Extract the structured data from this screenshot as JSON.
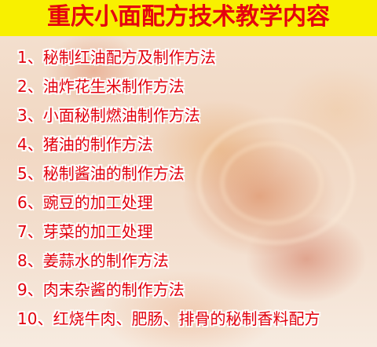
{
  "title": "重庆小面配方技术教学内容",
  "colors": {
    "header_bg": "#f8f000",
    "title_text": "#e5000f",
    "item_text": "#e2000c",
    "item_outline": "#ffffff"
  },
  "items": [
    {
      "num": "1、",
      "text": "秘制红油配方及制作方法"
    },
    {
      "num": "2、",
      "text": "油炸花生米制作方法"
    },
    {
      "num": "3、",
      "text": "小面秘制燃油制作方法"
    },
    {
      "num": "4、",
      "text": "猪油的制作方法"
    },
    {
      "num": "5、",
      "text": "秘制酱油的制作方法"
    },
    {
      "num": "6、",
      "text": "豌豆的加工处理"
    },
    {
      "num": "7、",
      "text": "芽菜的加工处理"
    },
    {
      "num": "8、",
      "text": "姜蒜水的制作方法"
    },
    {
      "num": "9、",
      "text": "肉末杂酱的制作方法"
    },
    {
      "num": "10、",
      "text": "红烧牛肉、肥肠、排骨的秘制香料配方"
    }
  ]
}
